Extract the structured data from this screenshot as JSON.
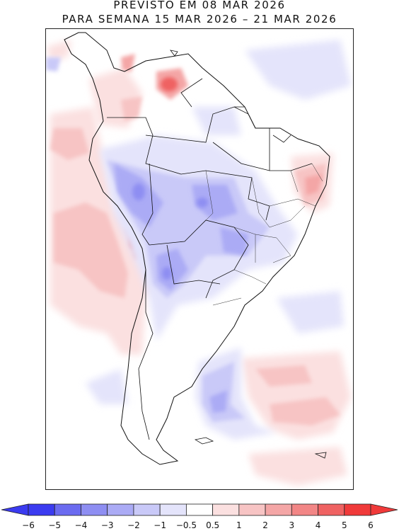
{
  "header": {
    "line1": "PREVISTO EM 08 MAR 2026",
    "line2": "PARA SEMANA 15 MAR 2026 – 21 MAR 2026"
  },
  "colorbar": {
    "labels": [
      "−6",
      "−5",
      "−4",
      "−3",
      "−2",
      "−1",
      "−0.5",
      "0.5",
      "1",
      "2",
      "3",
      "4",
      "5",
      "6"
    ],
    "colors": [
      "#3b3bf0",
      "#6b6bf0",
      "#8e8ef2",
      "#ababf5",
      "#c9c9f8",
      "#e4e4fb",
      "#ffffff",
      "#fbe0e0",
      "#f7c4c4",
      "#f4a6a6",
      "#f28686",
      "#ef6262",
      "#f03a3a"
    ]
  }
}
